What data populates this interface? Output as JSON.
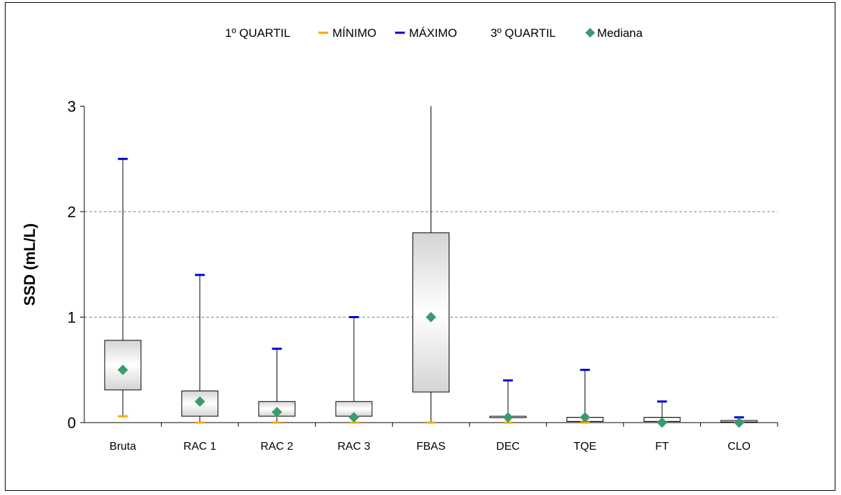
{
  "colors": {
    "min_marker": "#FFA500",
    "max_marker": "#0000CC",
    "median_marker": "#3A9B6E",
    "box_edge": "#000000",
    "grid": "#808080"
  },
  "legend": {
    "q1": "1º QUARTIL",
    "min": "MÍNIMO",
    "max": "MÁXIMO",
    "q3": "3º QUARTIL",
    "median": "Mediana"
  },
  "chart_data": {
    "type": "box",
    "ylabel": "SSD (mL/L)",
    "xlabel": "",
    "ylim": [
      0,
      3
    ],
    "yticks": [
      "0",
      "1",
      "2",
      "3"
    ],
    "grid": "horizontal dashed at 1 and 2",
    "legend_position": "top",
    "categories": [
      "Bruta",
      "RAC 1",
      "RAC 2",
      "RAC 3",
      "FBAS",
      "DEC",
      "TQE",
      "FT",
      "CLO"
    ],
    "series": [
      {
        "name": "1º QUARTIL",
        "values": [
          0.31,
          0.06,
          0.06,
          0.06,
          0.29,
          0.06,
          0.01,
          0.01,
          0.005
        ]
      },
      {
        "name": "MÍNIMO",
        "values": [
          0.06,
          0.0,
          0.0,
          0.0,
          0.0,
          0.0,
          0.0,
          0.0,
          0.0
        ]
      },
      {
        "name": "MÁXIMO",
        "values": [
          2.5,
          1.4,
          0.7,
          1.0,
          3.0,
          0.4,
          0.5,
          0.2,
          0.05
        ]
      },
      {
        "name": "3º QUARTIL",
        "values": [
          0.78,
          0.3,
          0.2,
          0.2,
          1.8,
          0.06,
          0.05,
          0.05,
          0.02
        ]
      },
      {
        "name": "Mediana",
        "values": [
          0.5,
          0.2,
          0.1,
          0.05,
          1.0,
          0.05,
          0.05,
          0.0,
          0.0
        ]
      }
    ],
    "max_marker_shown": [
      true,
      true,
      true,
      true,
      false,
      true,
      true,
      true,
      true
    ]
  }
}
